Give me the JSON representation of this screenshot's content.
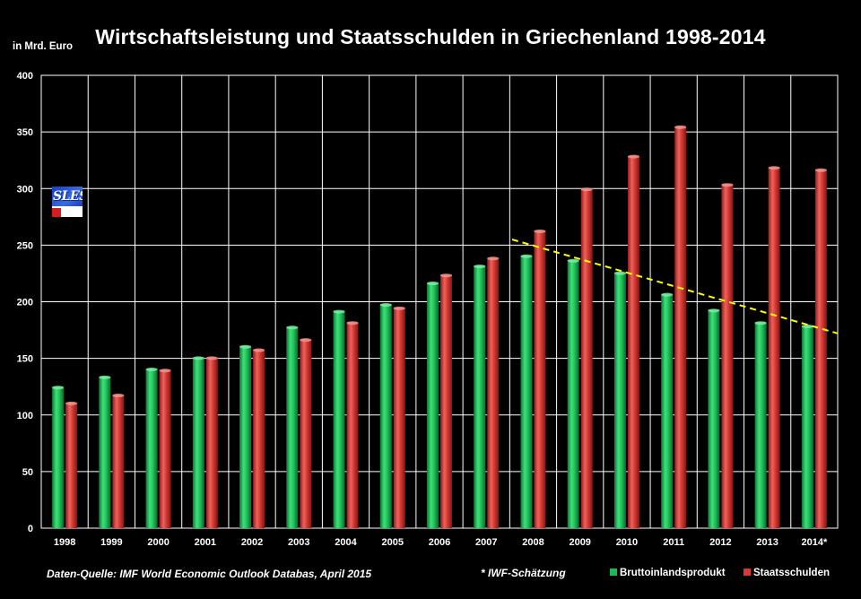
{
  "chart_data": {
    "type": "bar",
    "title": "Wirtschaftsleistung und Staatsschulden in Griechenland 1998-2014",
    "ylabel": "in Mrd. Euro",
    "xlabel": "",
    "ylim": [
      0,
      400
    ],
    "yticks": [
      0,
      50,
      100,
      150,
      200,
      250,
      300,
      350,
      400
    ],
    "grid": true,
    "categories": [
      "1998",
      "1999",
      "2000",
      "2001",
      "2002",
      "2003",
      "2004",
      "2005",
      "2006",
      "2007",
      "2008",
      "2009",
      "2010",
      "2011",
      "2012",
      "2013",
      "2014*"
    ],
    "series": [
      {
        "name": "Bruttoinlandsprodukt",
        "color": "#1db954",
        "values": [
          125,
          134,
          141,
          151,
          161,
          178,
          192,
          198,
          217,
          232,
          241,
          237,
          226,
          207,
          193,
          182,
          179
        ]
      },
      {
        "name": "Staatsschulden",
        "color": "#d63a34",
        "values": [
          111,
          118,
          140,
          151,
          158,
          167,
          182,
          195,
          224,
          239,
          263,
          300,
          329,
          355,
          304,
          319,
          317
        ]
      }
    ],
    "trendline": {
      "color": "#ffff00",
      "style": "dashed",
      "from": {
        "x": "2008",
        "y": 255
      },
      "to": {
        "x": "2014*",
        "y": 172
      }
    },
    "legend_position": "bottom-right",
    "source": "Daten-Quelle: IMF World Economic Outlook Databas, April 2015",
    "footnote": "* IWF-Schätzung"
  },
  "colors": {
    "background": "#000000",
    "grid": "#ffffff",
    "gdp": "#1db954",
    "debt": "#d63a34",
    "trend": "#ffff00"
  },
  "logo": {
    "text": "SLES"
  }
}
